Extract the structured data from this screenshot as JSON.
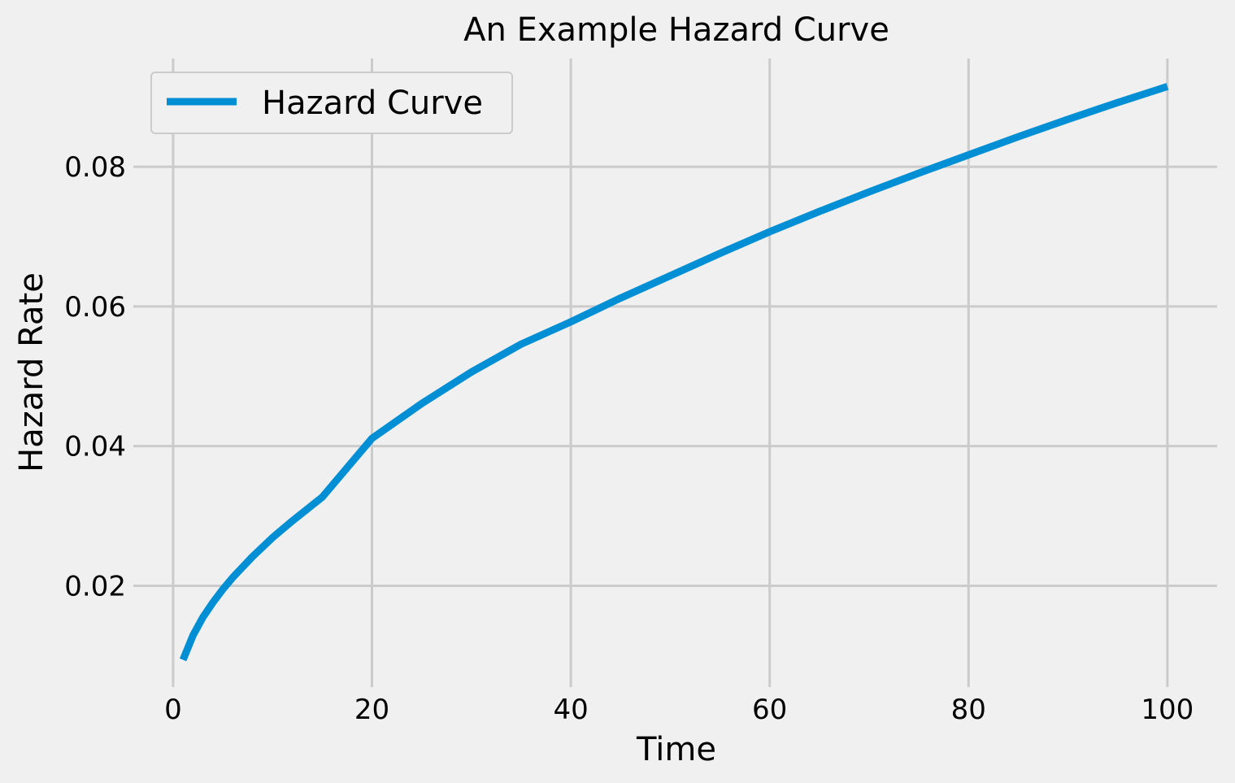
{
  "chart_data": {
    "type": "line",
    "title": "An Example Hazard Curve",
    "xlabel": "Time",
    "ylabel": "Hazard Rate",
    "xlim": [
      -4,
      105
    ],
    "ylim": [
      0.0055,
      0.0955
    ],
    "x_ticks": [
      0,
      20,
      40,
      60,
      80,
      100
    ],
    "y_ticks": [
      0.02,
      0.04,
      0.06,
      0.08
    ],
    "x_tick_labels": [
      "0",
      "20",
      "40",
      "60",
      "80",
      "100"
    ],
    "y_tick_labels": [
      "0.02",
      "0.04",
      "0.06",
      "0.08"
    ],
    "grid": true,
    "legend_position": "top-left",
    "colors": {
      "background": "#f0f0f0",
      "grid": "#cbcbcb",
      "line": "#008fd5",
      "legend_border": "#cbcbcb"
    },
    "series": [
      {
        "name": "Hazard Curve",
        "x": [
          1,
          2,
          3,
          4,
          5,
          6,
          8,
          10,
          12,
          15,
          20,
          25,
          30,
          35,
          40,
          45,
          50,
          55,
          60,
          65,
          70,
          75,
          80,
          85,
          90,
          95,
          100
        ],
        "y": [
          0.0094,
          0.0129,
          0.0155,
          0.0176,
          0.0195,
          0.0212,
          0.0242,
          0.0269,
          0.0293,
          0.0327,
          0.0411,
          0.0461,
          0.0506,
          0.0546,
          0.0578,
          0.0612,
          0.0644,
          0.0676,
          0.0707,
          0.0736,
          0.0764,
          0.0791,
          0.0817,
          0.0843,
          0.0868,
          0.0892,
          0.0915
        ]
      }
    ]
  }
}
